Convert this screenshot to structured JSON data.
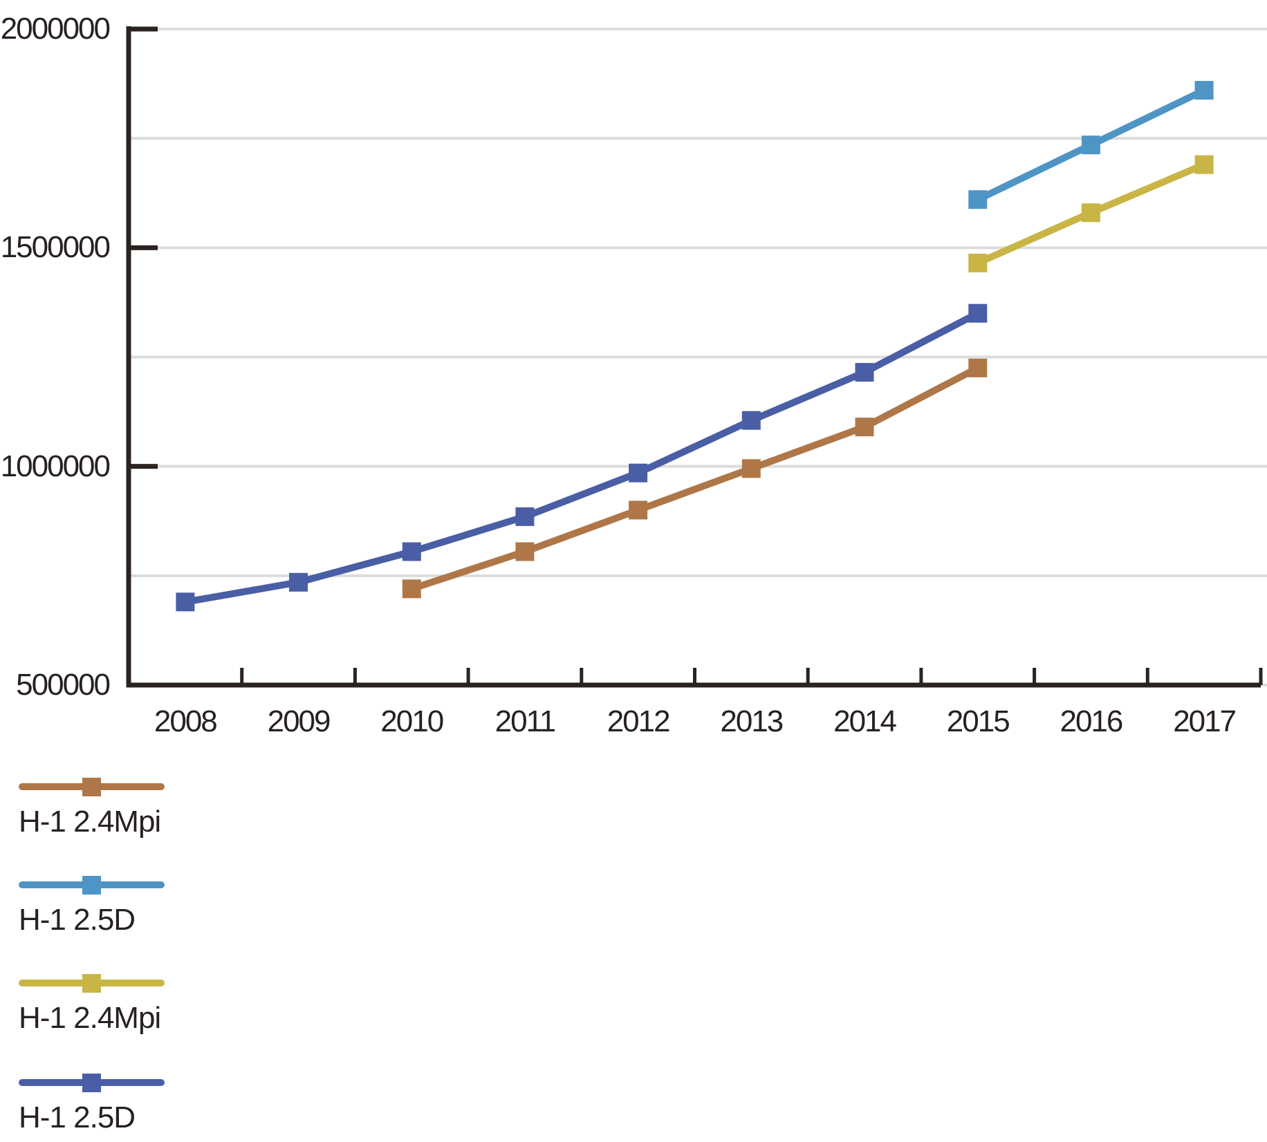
{
  "chart_data": {
    "type": "line",
    "title": "",
    "categories": [
      "2008",
      "2009",
      "2010",
      "2011",
      "2012",
      "2013",
      "2014",
      "2015",
      "2016",
      "2017"
    ],
    "ylim": [
      500000,
      2000000
    ],
    "gridline_step": 250000,
    "grid": "on",
    "y_ticks": [
      2000000,
      1500000,
      1000000,
      500000
    ],
    "y_ticklabels": [
      "2000000",
      "1500000",
      "1000000",
      "500000"
    ],
    "legend_position": "bottom-left",
    "marker": "square",
    "series": [
      {
        "name": "H-1 2.4Mpi",
        "color": "#AF7748",
        "start_index": 2,
        "values": [
          720000,
          805000,
          900000,
          995000,
          1090000,
          1225000
        ]
      },
      {
        "name": "H-1 2.5D",
        "color": "#4E95C6",
        "start_index": 7,
        "values": [
          1610000,
          1735000,
          1860000
        ]
      },
      {
        "name": "H-1 2.4Mpi",
        "color": "#C9B545",
        "start_index": 7,
        "values": [
          1465000,
          1580000,
          1690000
        ]
      },
      {
        "name": "H-1 2.5D",
        "color": "#4A5EA6",
        "start_index": 0,
        "values": [
          690000,
          735000,
          805000,
          885000,
          985000,
          1105000,
          1215000,
          1350000
        ]
      }
    ]
  },
  "colors": {
    "background": "#FFFFFF",
    "axis": "#2B2320",
    "text": "#272120",
    "gridline": "#DCDCDC"
  }
}
